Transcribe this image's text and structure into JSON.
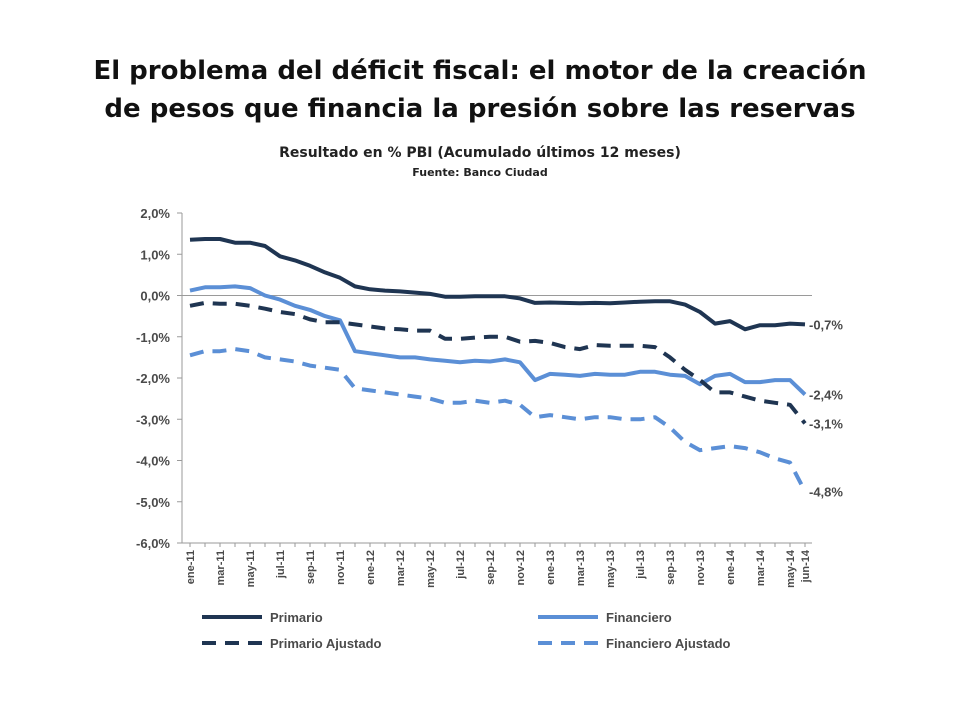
{
  "title_line1": "El problema del déficit fiscal: el motor de la creación",
  "title_line2": "de pesos que financia la presión sobre las reservas",
  "subtitle": "Resultado  en % PBI (Acumulado  últimos  12 meses)",
  "source": "Fuente: Banco Ciudad",
  "chart_data": {
    "type": "line",
    "ylim": [
      -6.0,
      2.0
    ],
    "yticks": [
      "2,0%",
      "1,0%",
      "0,0%",
      "-1,0%",
      "-2,0%",
      "-3,0%",
      "-4,0%",
      "-5,0%",
      "-6,0%"
    ],
    "ytick_values": [
      2,
      1,
      0,
      -1,
      -2,
      -3,
      -4,
      -5,
      -6
    ],
    "xticks": [
      "ene-11",
      "mar-11",
      "may-11",
      "jul-11",
      "sep-11",
      "nov-11",
      "ene-12",
      "mar-12",
      "may-12",
      "jul-12",
      "sep-12",
      "nov-12",
      "ene-13",
      "mar-13",
      "may-13",
      "jul-13",
      "sep-13",
      "nov-13",
      "ene-14",
      "mar-14",
      "may-14",
      "jun-14"
    ],
    "months": [
      "ene-11",
      "feb-11",
      "mar-11",
      "abr-11",
      "may-11",
      "jun-11",
      "jul-11",
      "ago-11",
      "sep-11",
      "oct-11",
      "nov-11",
      "dic-11",
      "ene-12",
      "feb-12",
      "mar-12",
      "abr-12",
      "may-12",
      "jun-12",
      "jul-12",
      "ago-12",
      "sep-12",
      "oct-12",
      "nov-12",
      "dic-12",
      "ene-13",
      "feb-13",
      "mar-13",
      "abr-13",
      "may-13",
      "jun-13",
      "jul-13",
      "ago-13",
      "sep-13",
      "oct-13",
      "nov-13",
      "dic-13",
      "ene-14",
      "feb-14",
      "mar-14",
      "abr-14",
      "may-14",
      "jun-14"
    ],
    "grid": false,
    "legend_position": "bottom",
    "series": [
      {
        "name": "Primario",
        "color": "#1f3552",
        "style": "solid",
        "end_label": "-0,7%",
        "values": [
          1.35,
          1.37,
          1.37,
          1.28,
          1.28,
          1.2,
          0.95,
          0.85,
          0.72,
          0.56,
          0.43,
          0.22,
          0.15,
          0.12,
          0.1,
          0.07,
          0.04,
          -0.03,
          -0.03,
          -0.02,
          -0.02,
          -0.02,
          -0.07,
          -0.18,
          -0.17,
          -0.18,
          -0.19,
          -0.18,
          -0.19,
          -0.17,
          -0.15,
          -0.14,
          -0.14,
          -0.22,
          -0.4,
          -0.68,
          -0.62,
          -0.82,
          -0.72,
          -0.72,
          -0.68,
          -0.7
        ]
      },
      {
        "name": "Financiero",
        "color": "#5b8fd6",
        "style": "solid",
        "end_label": "-2,4%",
        "values": [
          0.12,
          0.2,
          0.2,
          0.22,
          0.18,
          0.0,
          -0.1,
          -0.25,
          -0.35,
          -0.5,
          -0.6,
          -1.35,
          -1.4,
          -1.45,
          -1.5,
          -1.5,
          -1.55,
          -1.58,
          -1.62,
          -1.58,
          -1.6,
          -1.55,
          -1.62,
          -2.05,
          -1.9,
          -1.92,
          -1.95,
          -1.9,
          -1.92,
          -1.92,
          -1.85,
          -1.85,
          -1.92,
          -1.95,
          -2.15,
          -1.95,
          -1.9,
          -2.1,
          -2.1,
          -2.05,
          -2.05,
          -2.4
        ]
      },
      {
        "name": "Primario Ajustado",
        "color": "#1f3552",
        "style": "dashed",
        "end_label": "-3,1%",
        "values": [
          -0.25,
          -0.18,
          -0.2,
          -0.2,
          -0.25,
          -0.32,
          -0.4,
          -0.45,
          -0.58,
          -0.65,
          -0.65,
          -0.7,
          -0.75,
          -0.8,
          -0.82,
          -0.85,
          -0.85,
          -1.05,
          -1.05,
          -1.02,
          -1.0,
          -1.0,
          -1.12,
          -1.1,
          -1.15,
          -1.25,
          -1.3,
          -1.2,
          -1.22,
          -1.22,
          -1.22,
          -1.25,
          -1.5,
          -1.8,
          -2.05,
          -2.35,
          -2.35,
          -2.45,
          -2.55,
          -2.6,
          -2.65,
          -3.1
        ]
      },
      {
        "name": "Financiero Ajustado",
        "color": "#5b8fd6",
        "style": "dashed",
        "end_label": "-4,8%",
        "values": [
          -1.45,
          -1.35,
          -1.35,
          -1.3,
          -1.35,
          -1.5,
          -1.55,
          -1.6,
          -1.7,
          -1.75,
          -1.8,
          -2.25,
          -2.3,
          -2.35,
          -2.4,
          -2.45,
          -2.5,
          -2.6,
          -2.6,
          -2.55,
          -2.6,
          -2.55,
          -2.65,
          -2.95,
          -2.9,
          -2.95,
          -3.0,
          -2.95,
          -2.95,
          -3.0,
          -3.0,
          -2.95,
          -3.2,
          -3.55,
          -3.75,
          -3.7,
          -3.65,
          -3.7,
          -3.8,
          -3.95,
          -4.05,
          -4.75
        ]
      }
    ]
  }
}
